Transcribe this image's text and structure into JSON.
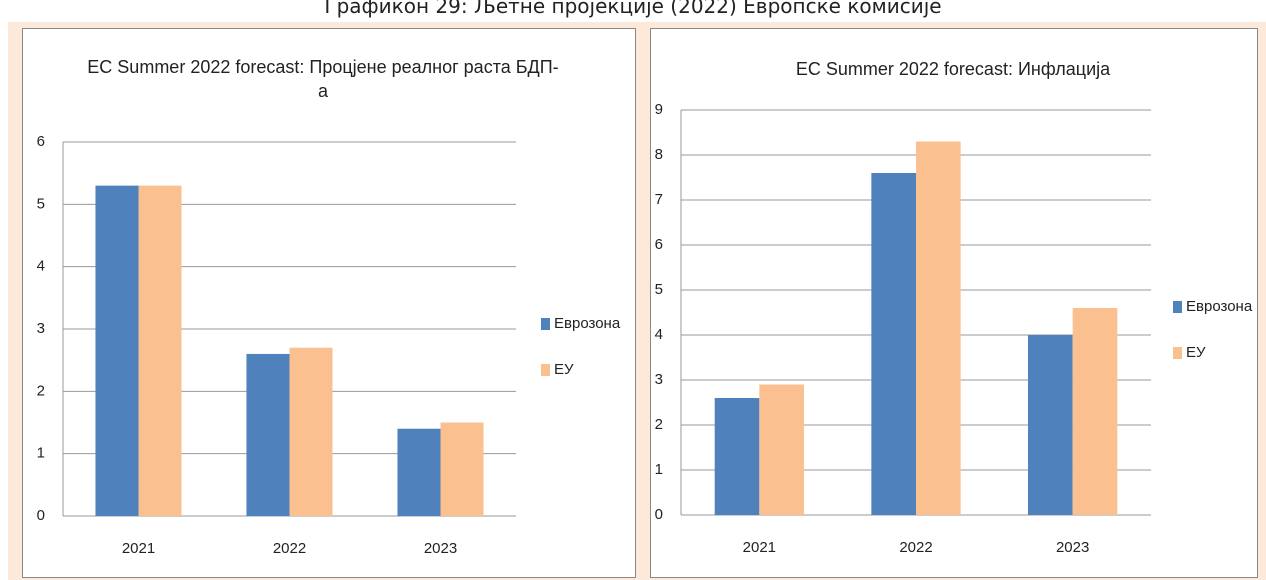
{
  "heading": "Графикон 29: Љетне пројекције (2022) Европске комисије",
  "chart_data": [
    {
      "type": "bar",
      "title": "EC Summer 2022 forecast: Процјене реалног раста БДП-а",
      "categories": [
        "2021",
        "2022",
        "2023"
      ],
      "series": [
        {
          "name": "Еврозона",
          "color": "#4f81bd",
          "values": [
            5.3,
            2.6,
            1.4
          ]
        },
        {
          "name": "ЕУ",
          "color": "#fac090",
          "values": [
            5.3,
            2.7,
            1.5
          ]
        }
      ],
      "ylim": [
        0,
        6
      ],
      "yticks": [
        0,
        1,
        2,
        3,
        4,
        5,
        6
      ],
      "grid": true,
      "legend": "right"
    },
    {
      "type": "bar",
      "title": "EC Summer 2022 forecast: Инфлација",
      "categories": [
        "2021",
        "2022",
        "2023"
      ],
      "series": [
        {
          "name": "Еврозона",
          "color": "#4f81bd",
          "values": [
            2.6,
            7.6,
            4.0
          ]
        },
        {
          "name": "ЕУ",
          "color": "#fac090",
          "values": [
            2.9,
            8.3,
            4.6
          ]
        }
      ],
      "ylim": [
        0,
        9
      ],
      "yticks": [
        0,
        1,
        2,
        3,
        4,
        5,
        6,
        7,
        8,
        9
      ],
      "grid": true,
      "legend": "right"
    }
  ]
}
